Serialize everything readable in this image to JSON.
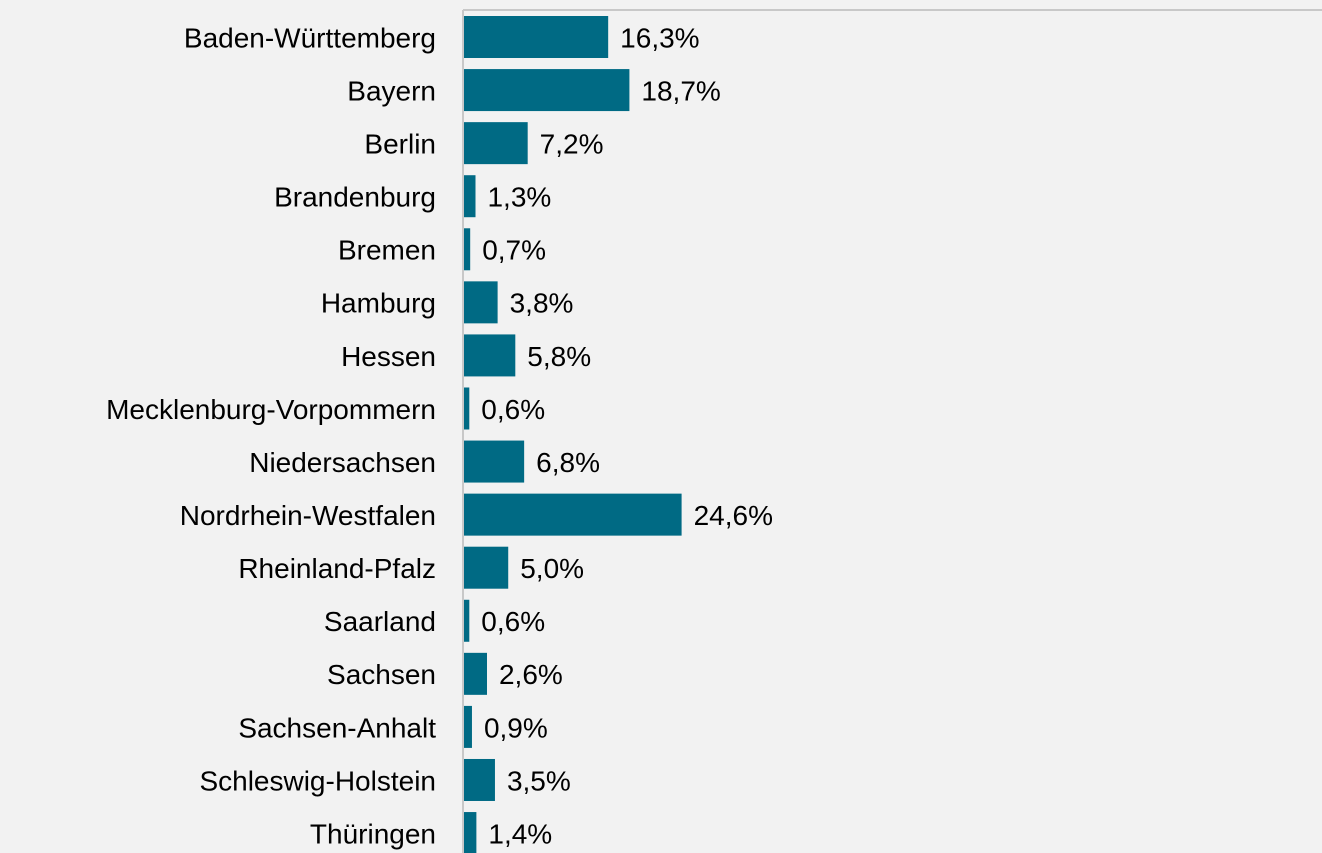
{
  "chart_data": {
    "type": "barh",
    "categories": [
      "Baden-Württemberg",
      "Bayern",
      "Berlin",
      "Brandenburg",
      "Bremen",
      "Hamburg",
      "Hessen",
      "Mecklenburg-Vorpommern",
      "Niedersachsen",
      "Nordrhein-Westfalen",
      "Rheinland-Pfalz",
      "Saarland",
      "Sachsen",
      "Sachsen-Anhalt",
      "Schleswig-Holstein",
      "Thüringen"
    ],
    "values": [
      16.3,
      18.7,
      7.2,
      1.3,
      0.7,
      3.8,
      5.8,
      0.6,
      6.8,
      24.6,
      5.0,
      0.6,
      2.6,
      0.9,
      3.5,
      1.4
    ],
    "value_labels": [
      "16,3%",
      "18,7%",
      "7,2%",
      "1,3%",
      "0,7%",
      "3,8%",
      "5,8%",
      "0,6%",
      "6,8%",
      "24,6%",
      "5,0%",
      "0,6%",
      "2,6%",
      "0,9%",
      "3,5%",
      "1,4%"
    ],
    "color": "#006a84",
    "xlim": [
      0,
      97
    ]
  }
}
